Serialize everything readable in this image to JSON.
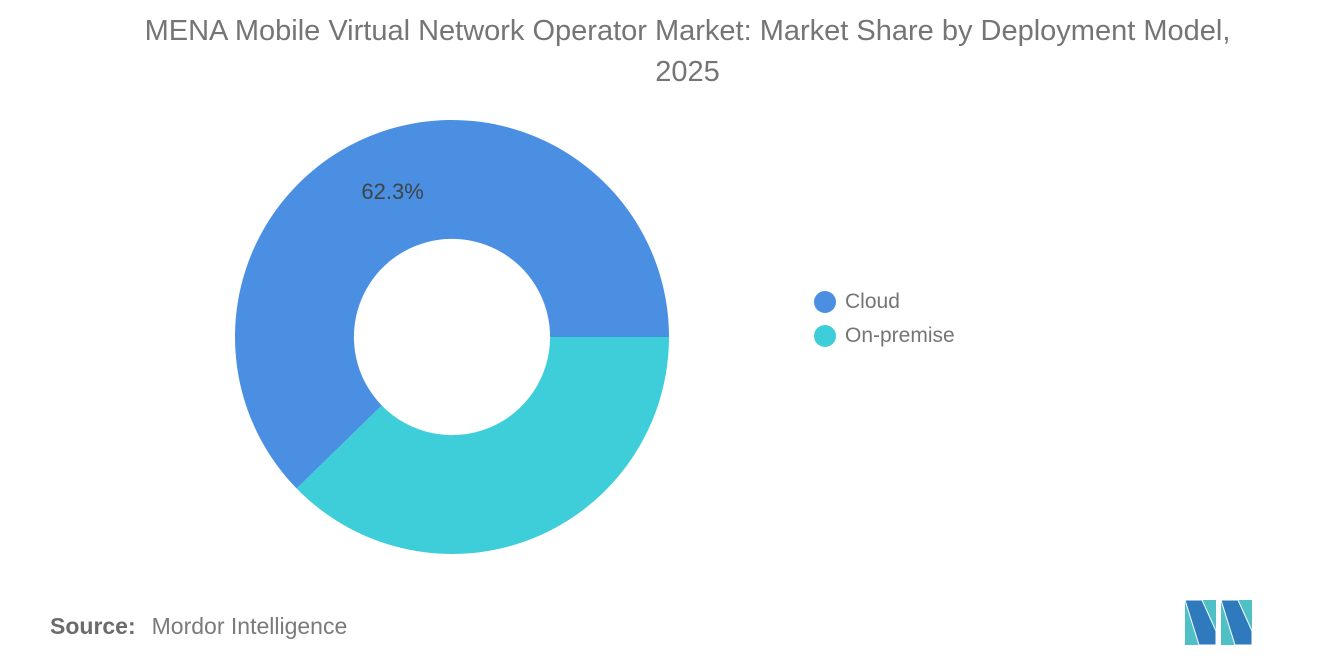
{
  "title": "MENA Mobile Virtual Network Operator Market: Market Share by Deployment Model, 2025",
  "chart_data": {
    "type": "pie",
    "subtype": "donut",
    "title": "MENA Mobile Virtual Network Operator Market: Market Share by Deployment Model, 2025",
    "categories": [
      "Cloud",
      "On-premise"
    ],
    "values": [
      62.3,
      37.7
    ],
    "unit": "%",
    "slice_labels": [
      "62.3%",
      ""
    ],
    "colors": [
      "#4A8FE2",
      "#3ECED9"
    ],
    "start_angle_deg": 0,
    "direction": "counterclockwise",
    "inner_radius_ratio": 0.452,
    "label_color": "#3F4448",
    "label_font_size": 22,
    "legend_position": "right",
    "grid": false
  },
  "legend": {
    "items": [
      {
        "label": "Cloud",
        "color": "#4A8FE2"
      },
      {
        "label": "On-premise",
        "color": "#3ECED9"
      }
    ]
  },
  "source": {
    "label": "Source:",
    "value": "Mordor Intelligence"
  },
  "logo": {
    "name": "mordor-intelligence-logo",
    "teal": "#4FC0C5",
    "blue": "#2E7ABD"
  }
}
